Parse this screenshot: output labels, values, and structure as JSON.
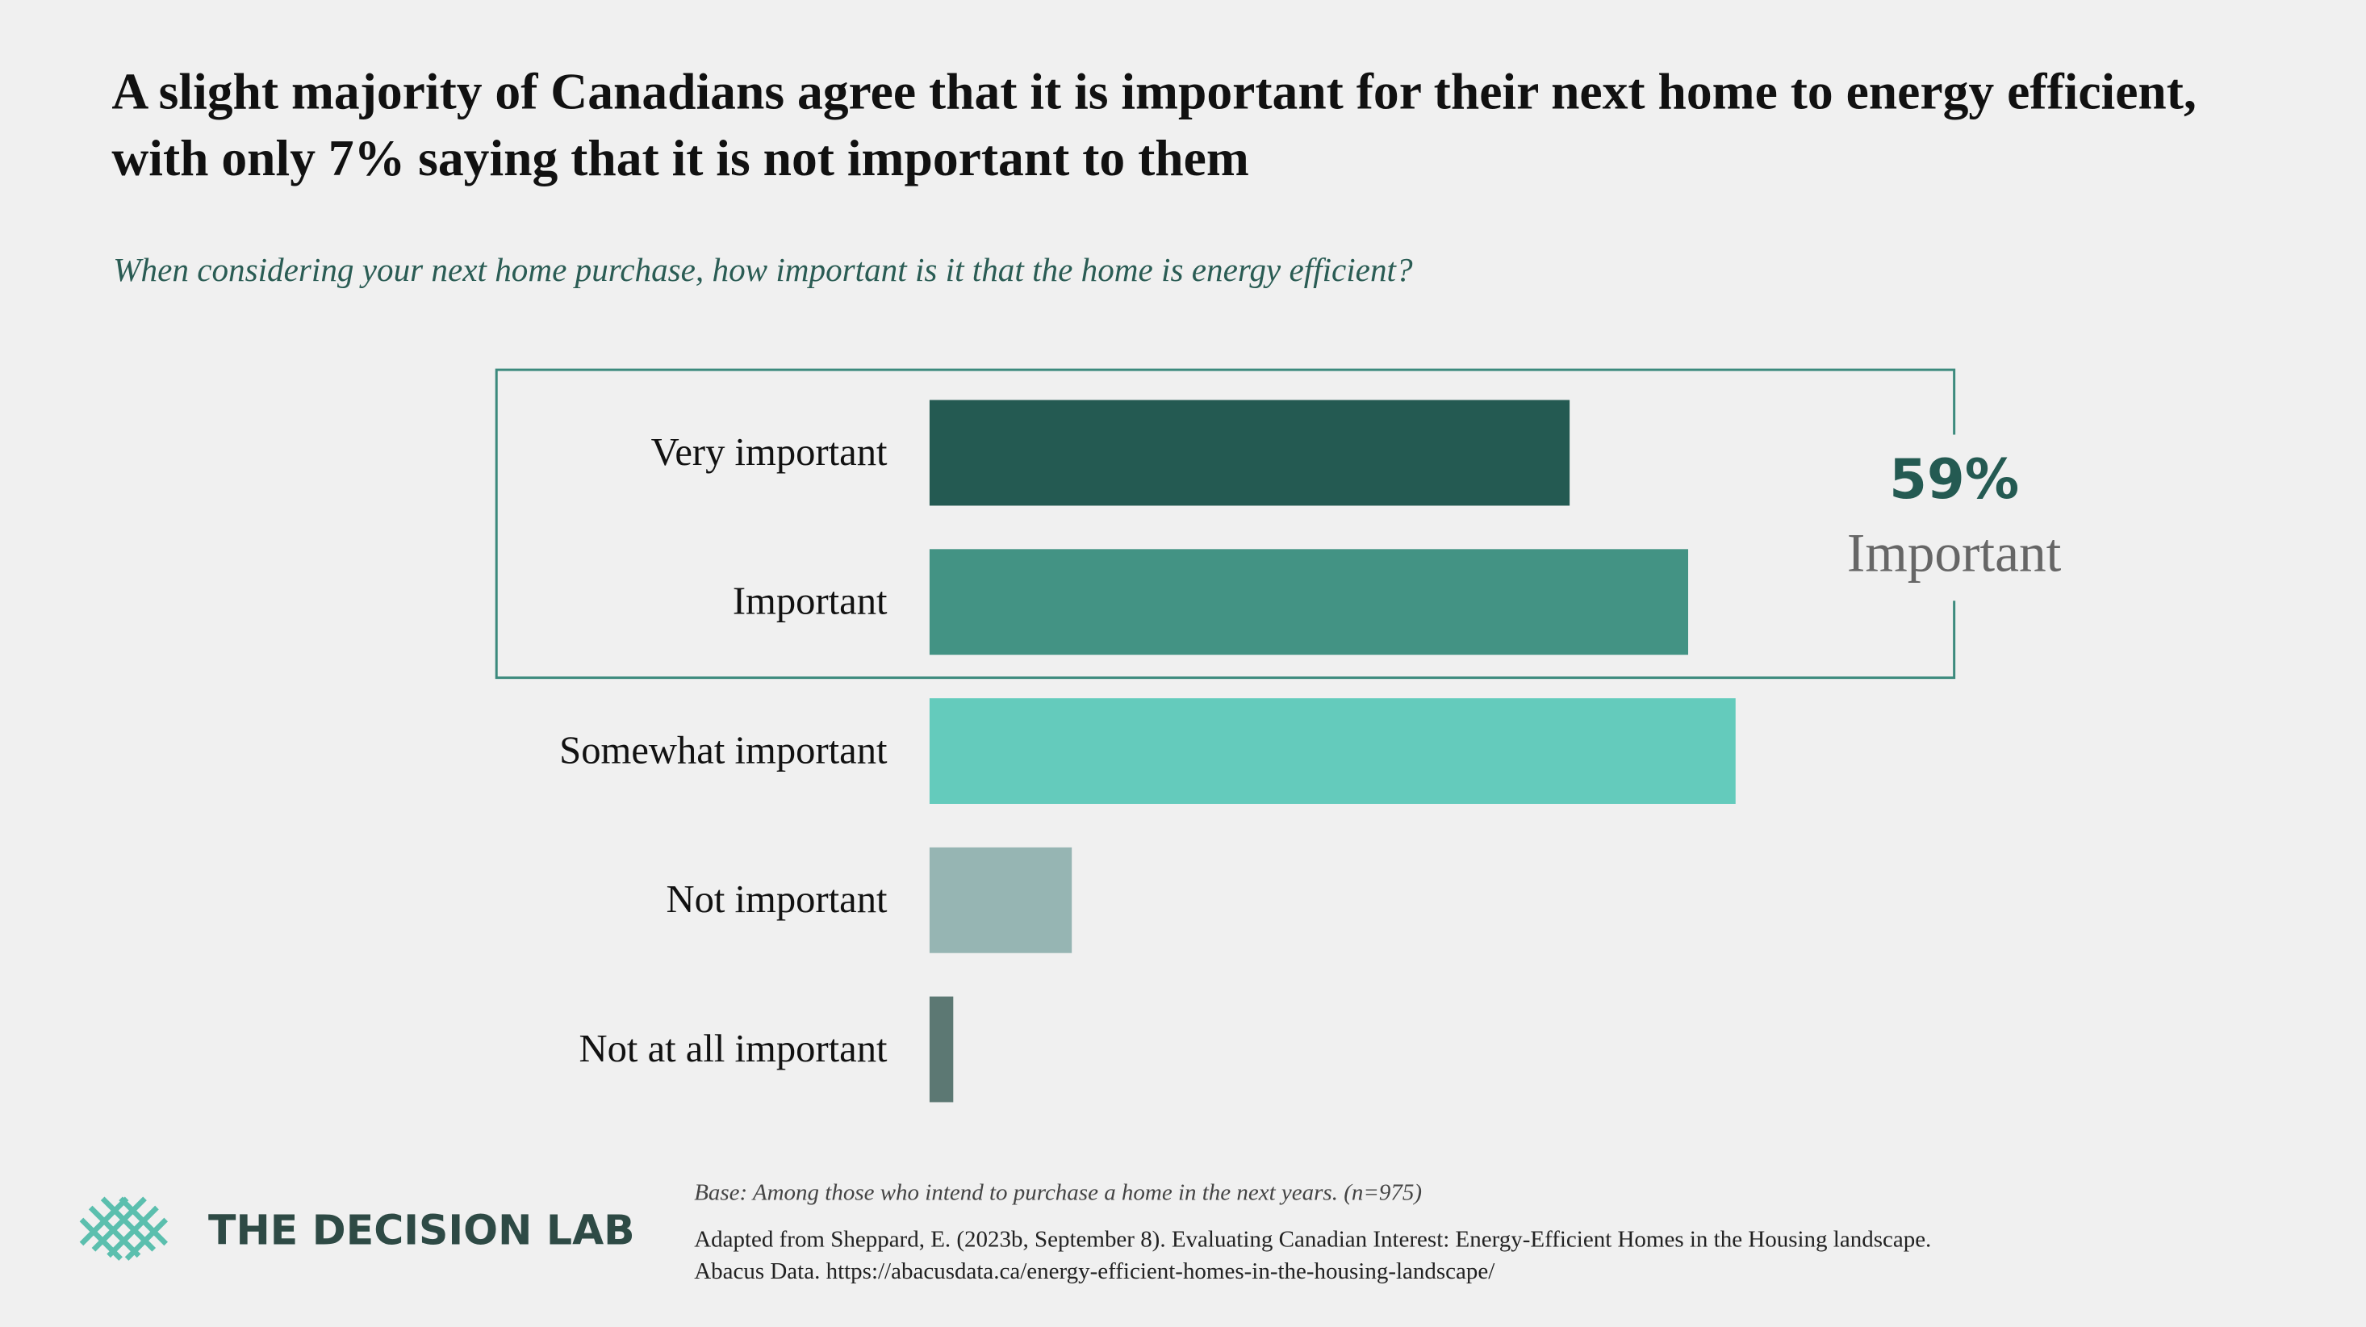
{
  "chart_data": {
    "type": "bar",
    "orientation": "horizontal",
    "title": "A slight majority of Canadians agree that it is important for their next home to energy efficient, with only 7% saying that it is not important to them",
    "subtitle": "When considering your next home purchase, how important is it that the home is energy efficient?",
    "categories": [
      "Very important",
      "Important",
      "Somewhat important",
      "Not important",
      "Not at all important"
    ],
    "values": [
      27,
      32,
      34,
      6,
      1
    ],
    "colors": [
      "#245a52",
      "#439384",
      "#64cbbc",
      "#96b5b3",
      "#5c7873"
    ],
    "bracket": {
      "label": "59%",
      "caption": "Important"
    },
    "base_note": "Base: Among those who intend to purchase  a home in the next years. (n=975)",
    "source_lines": [
      "Adapted from Sheppard, E. (2023b, September 8). Evaluating Canadian Interest: Energy-Efficient Homes in the Housing landscape.",
      "Abacus Data. https://abacusdata.ca/energy-efficient-homes-in-the-housing-landscape/"
    ],
    "brand": "THE DECISION LAB"
  }
}
